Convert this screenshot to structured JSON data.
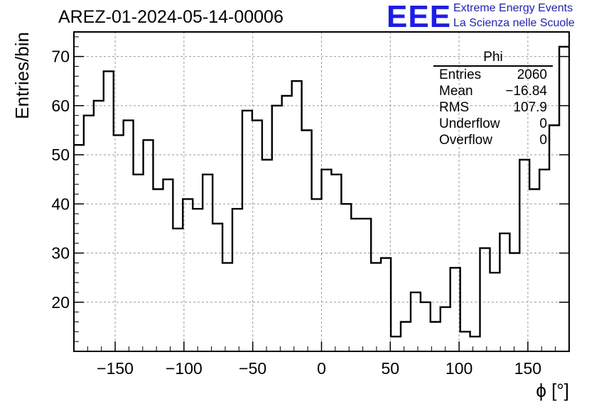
{
  "header": {
    "title": "AREZ-01-2024-05-14-00006",
    "logo_text": "EEE",
    "tagline_1": "Extreme Energy Events",
    "tagline_2": "La Scienza nelle Scuole"
  },
  "stats_box": {
    "name": "Phi",
    "rows": [
      {
        "label": "Entries",
        "value": "2060"
      },
      {
        "label": "Mean",
        "value": "−16.84"
      },
      {
        "label": "RMS",
        "value": "107.9"
      },
      {
        "label": "Underflow",
        "value": "0"
      },
      {
        "label": "Overflow",
        "value": "0"
      }
    ]
  },
  "colors": {
    "line": "#000000",
    "grid": "#999999",
    "logo": "#1a1aff"
  },
  "chart_data": {
    "type": "bar",
    "style": "step-histogram",
    "xlabel": "ϕ [°]",
    "ylabel": "Entries/bin",
    "xlim": [
      -180,
      180
    ],
    "ylim": [
      10,
      75
    ],
    "grid": true,
    "bin_width": 7.2,
    "x_ticks": [
      -150,
      -100,
      -50,
      0,
      50,
      100,
      150
    ],
    "x_tick_labels": [
      "−150",
      "−100",
      "−50",
      "0",
      "50",
      "100",
      "150"
    ],
    "y_ticks": [
      20,
      30,
      40,
      50,
      60,
      70
    ],
    "y_tick_labels": [
      "20",
      "30",
      "40",
      "50",
      "60",
      "70"
    ],
    "bin_edges_start": -180,
    "values": [
      52,
      58,
      61,
      67,
      54,
      57,
      46,
      53,
      43,
      45,
      35,
      41,
      39,
      46,
      36,
      28,
      39,
      59,
      57,
      49,
      60,
      62,
      65,
      55,
      41,
      47,
      46,
      40,
      37,
      37,
      28,
      29,
      13,
      16,
      22,
      20,
      16,
      19,
      27,
      14,
      13,
      31,
      26,
      34,
      30,
      49,
      43,
      47,
      56,
      72
    ]
  }
}
